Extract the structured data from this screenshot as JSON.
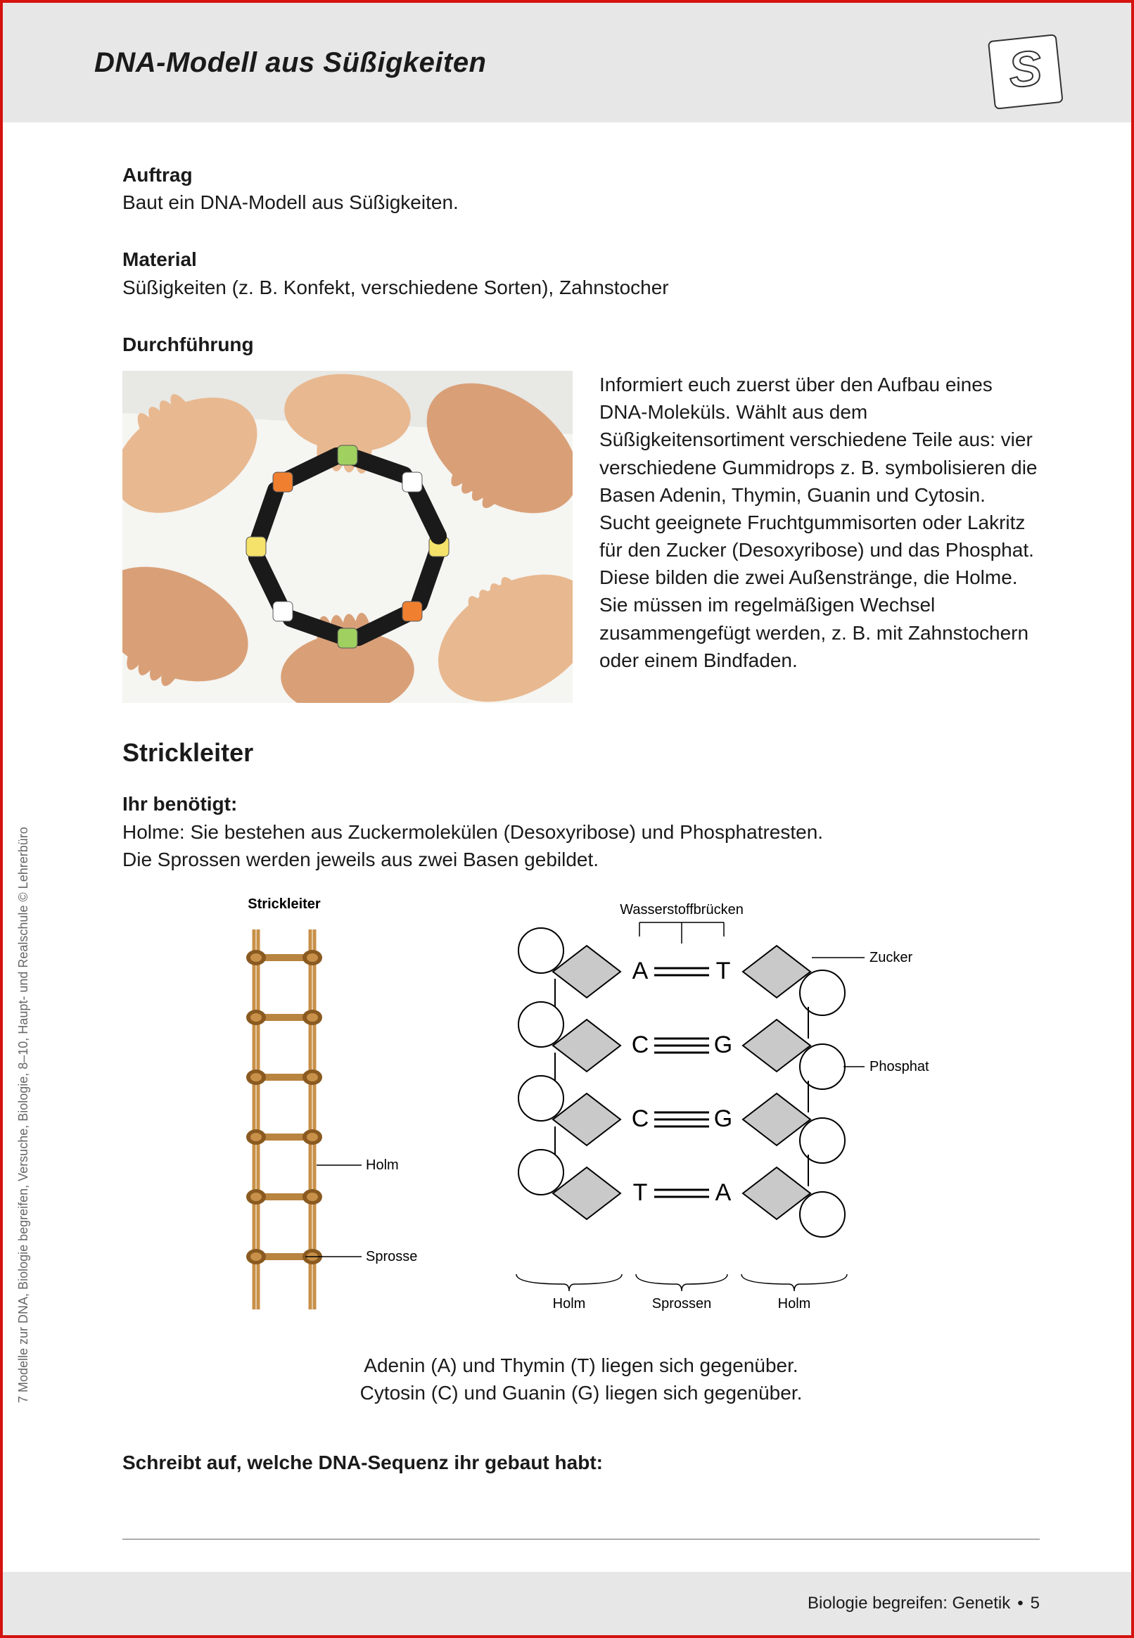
{
  "header": {
    "title": "DNA-Modell aus Süßigkeiten",
    "stamp_letter": "S"
  },
  "sections": {
    "auftrag_h": "Auftrag",
    "auftrag_t": "Baut ein DNA-Modell aus Süßigkeiten.",
    "material_h": "Material",
    "material_t": "Süßigkeiten (z. B. Konfekt, verschiedene Sorten), Zahnstocher",
    "durch_h": "Durchführung",
    "durch_t": "Informiert euch zuerst über den Aufbau eines DNA-Moleküls. Wählt aus dem Süßigkeitensortiment verschiedene Teile aus: vier verschiedene Gummidrops z. B. symbolisieren die Basen Adenin, Thymin, Guanin und Cytosin.\nSucht geeignete Fruchtgummisorten oder Lakritz für den Zucker (Desoxyribose) und das Phosphat. Diese bilden die zwei Außenstränge, die Holme. Sie müssen im regelmäßigen Wechsel zusammengefügt werden, z. B. mit Zahnstochern oder einem Bindfaden.",
    "strick_h": "Strickleiter",
    "need_h": "Ihr benötigt:",
    "need_t1": "Holme: Sie bestehen aus Zuckermolekülen (Desoxyribose) und Phosphatresten.",
    "need_t2": "Die Sprossen werden jeweils aus zwei Basen gebildet.",
    "caption1": "Adenin (A) und Thymin (T) liegen sich gegenüber.",
    "caption2": "Cytosin (C) und Guanin (G) liegen sich gegenüber.",
    "write_h": "Schreibt auf, welche DNA-Sequenz ihr gebaut habt:"
  },
  "ladder": {
    "title": "Strickleiter",
    "label_holm": "Holm",
    "label_sprosse": "Sprosse",
    "rope_color": "#c89048",
    "rung_color": "#b88440",
    "knot_color": "#8a5a20",
    "rungs": 6
  },
  "dna": {
    "label_hbonds": "Wasserstoffbrücken",
    "label_zucker": "Zucker",
    "label_phosphat": "Phosphat",
    "bottom_holm": "Holm",
    "bottom_sprossen": "Sprossen",
    "pairs": [
      {
        "l": "A",
        "r": "T",
        "bonds": 2
      },
      {
        "l": "C",
        "r": "G",
        "bonds": 3
      },
      {
        "l": "C",
        "r": "G",
        "bonds": 3
      },
      {
        "l": "T",
        "r": "A",
        "bonds": 2
      }
    ],
    "sugar_fill": "#c9c9c9",
    "phosphate_fill": "#ffffff",
    "stroke": "#000000"
  },
  "photo": {
    "alt": "Hände bauen DNA-Modell aus Süßigkeiten",
    "skin": "#e8b890",
    "skin2": "#d9a078",
    "licorice": "#1a1a1a",
    "candy1": "#f4e26a",
    "candy2": "#f08030",
    "candy3": "#a0d060",
    "table": "#f5f5f2"
  },
  "side_credit": "7 Modelle zur DNA, Biologie begreifen, Versuche, Biologie, 8–10, Haupt- und Realschule  © Lehrerbüro",
  "footer": {
    "book": "Biologie begreifen: Genetik",
    "page": "5"
  },
  "colors": {
    "border": "#d4130f",
    "band": "#e7e7e7",
    "text": "#1a1a1a",
    "muted": "#666666"
  }
}
